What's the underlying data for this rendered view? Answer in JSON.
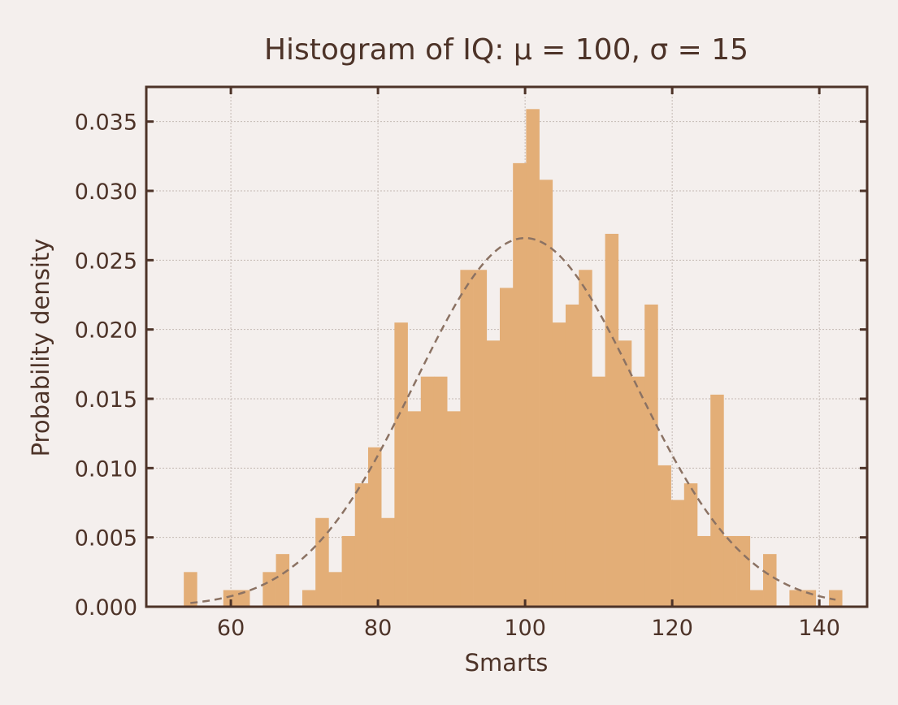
{
  "chart_data": {
    "type": "bar",
    "title": "Histogram of IQ: μ = 100, σ = 15",
    "xlabel": "Smarts",
    "ylabel": "Probability density",
    "xlim": [
      48.5,
      146.5
    ],
    "ylim": [
      0,
      0.0375
    ],
    "xticks": [
      60,
      80,
      100,
      120,
      140
    ],
    "yticks": [
      0.0,
      0.005,
      0.01,
      0.015,
      0.02,
      0.025,
      0.03,
      0.035
    ],
    "ytick_labels": [
      "0.000",
      "0.005",
      "0.010",
      "0.015",
      "0.020",
      "0.025",
      "0.030",
      "0.035"
    ],
    "grid": true,
    "bin_start": 53.6,
    "bin_width": 1.79,
    "bin_densities": [
      0.0025,
      0,
      0,
      0.0012,
      0.0012,
      0,
      0.0025,
      0.0038,
      0,
      0.0012,
      0.0064,
      0.0025,
      0.0051,
      0.0089,
      0.0115,
      0.0064,
      0.0205,
      0.0141,
      0.0166,
      0.0166,
      0.0141,
      0.0243,
      0.0243,
      0.0192,
      0.023,
      0.032,
      0.0359,
      0.0308,
      0.0205,
      0.0218,
      0.0243,
      0.0166,
      0.0269,
      0.0192,
      0.0166,
      0.0218,
      0.0102,
      0.0077,
      0.0089,
      0.0051,
      0.0153,
      0.0051,
      0.0051,
      0.0012,
      0.0038,
      0,
      0.0012,
      0.0012,
      0,
      0.0012
    ],
    "fit_curve": {
      "mu": 100,
      "sigma": 15,
      "style": "dashed"
    },
    "colors": {
      "bars": "#e3ae77",
      "curve": "#8b7263",
      "axes": "#4d3328",
      "grid": "#c4b9b3",
      "background": "#f4efed"
    }
  }
}
